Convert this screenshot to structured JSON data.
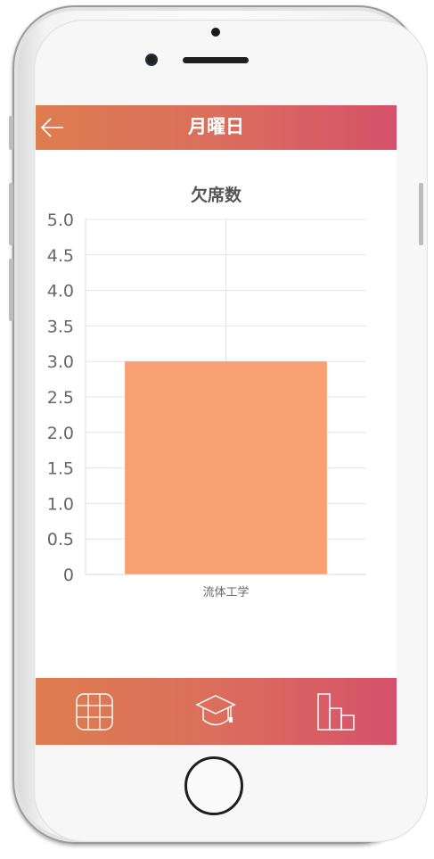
{
  "header": {
    "title": "月曜日",
    "back_icon": "arrow-left-icon"
  },
  "chart_data": {
    "type": "bar",
    "title": "欠席数",
    "categories": [
      "流体工学"
    ],
    "values": [
      3.0
    ],
    "ylim": [
      0,
      5.0
    ],
    "yticks": [
      "0",
      "0.5",
      "1.0",
      "1.5",
      "2.0",
      "2.5",
      "3.0",
      "3.5",
      "4.0",
      "4.5",
      "5.0"
    ],
    "grid": true,
    "bar_color": "#f9a073"
  },
  "footer": {
    "tabs": [
      {
        "icon": "timetable-grid-icon"
      },
      {
        "icon": "graduation-cap-icon"
      },
      {
        "icon": "bar-chart-icon"
      }
    ]
  },
  "colors": {
    "gradient_start": "#dd7d50",
    "gradient_end": "#d6516a",
    "bar": "#f9a073"
  }
}
